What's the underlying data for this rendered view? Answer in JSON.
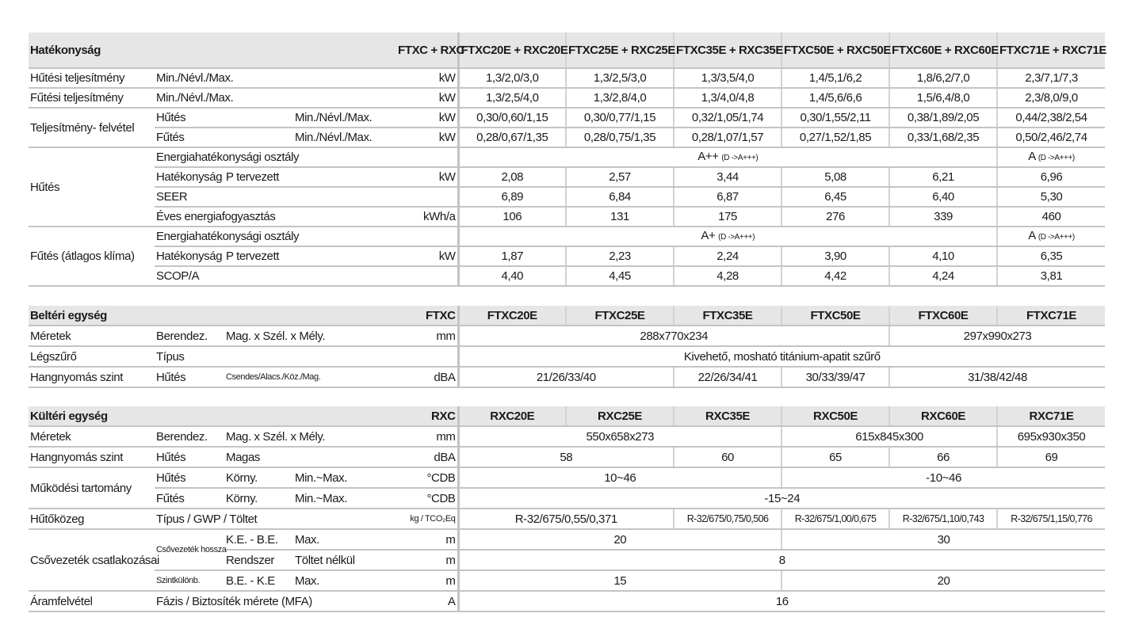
{
  "sections": [
    {
      "name": "hatekonysag",
      "rows": [
        {
          "head": true,
          "labels": [
            {
              "t": "Hatékonyság",
              "cs": 4
            }
          ],
          "unit": "FTXC + RXC",
          "values": [
            {
              "t": "FTXC20E +\nRXC20E"
            },
            {
              "t": "FTXC25E +\nRXC25E"
            },
            {
              "t": "FTXC35E +\nRXC35E"
            },
            {
              "t": "FTXC50E +\nRXC50E"
            },
            {
              "t": "FTXC60E +\nRXC60E"
            },
            {
              "t": "FTXC71E +\nRXC71E"
            }
          ]
        },
        {
          "labels": [
            {
              "t": "Hűtési teljesítmény"
            },
            {
              "t": "Min./Névl./Max.",
              "cs": 3
            }
          ],
          "unit": "kW",
          "values": [
            {
              "t": "1,3/2,0/3,0"
            },
            {
              "t": "1,3/2,5/3,0"
            },
            {
              "t": "1,3/3,5/4,0"
            },
            {
              "t": "1,4/5,1/6,2"
            },
            {
              "t": "1,8/6,2/7,0"
            },
            {
              "t": "2,3/7,1/7,3"
            }
          ]
        },
        {
          "labels": [
            {
              "t": "Fűtési teljesítmény"
            },
            {
              "t": "Min./Névl./Max.",
              "cs": 3
            }
          ],
          "unit": "kW",
          "values": [
            {
              "t": "1,3/2,5/4,0"
            },
            {
              "t": "1,3/2,8/4,0"
            },
            {
              "t": "1,3/4,0/4,8"
            },
            {
              "t": "1,4/5,6/6,6"
            },
            {
              "t": "1,5/6,4/8,0"
            },
            {
              "t": "2,3/8,0/9,0"
            }
          ]
        },
        {
          "labels": [
            {
              "t": "Teljesítmény-\nfelvétel",
              "rs": 2
            },
            {
              "t": "Hűtés",
              "cs": 2
            },
            {
              "t": "Min./Névl./Max."
            }
          ],
          "unit": "kW",
          "values": [
            {
              "t": "0,30/0,60/1,15"
            },
            {
              "t": "0,30/0,77/1,15"
            },
            {
              "t": "0,32/1,05/1,74"
            },
            {
              "t": "0,30/1,55/2,11"
            },
            {
              "t": "0,38/1,89/2,05"
            },
            {
              "t": "0,44/2,38/2,54"
            }
          ]
        },
        {
          "labels": [
            {
              "t": "Fűtés",
              "cs": 2
            },
            {
              "t": "Min./Névl./Max."
            }
          ],
          "unit": "kW",
          "values": [
            {
              "t": "0,28/0,67/1,35"
            },
            {
              "t": "0,28/0,75/1,35"
            },
            {
              "t": "0,28/1,07/1,57"
            },
            {
              "t": "0,27/1,52/1,85"
            },
            {
              "t": "0,33/1,68/2,35"
            },
            {
              "t": "0,50/2,46/2,74"
            }
          ]
        },
        {
          "labels": [
            {
              "t": "Hűtés",
              "rs": 4
            },
            {
              "t": "Energiahatékonysági osztály",
              "cs": 3
            }
          ],
          "unit": "",
          "values": [
            {
              "class": "A++",
              "range": "(D ->A+++)",
              "span": 5
            },
            {
              "class": "A",
              "range": "(D ->A+++)"
            }
          ]
        },
        {
          "labels": [
            {
              "t": "Hatékonyság"
            },
            {
              "t": "P tervezett",
              "cs": 2
            }
          ],
          "unit": "kW",
          "values": [
            {
              "t": "2,08"
            },
            {
              "t": "2,57"
            },
            {
              "t": "3,44"
            },
            {
              "t": "5,08"
            },
            {
              "t": "6,21"
            },
            {
              "t": "6,96"
            }
          ]
        },
        {
          "labels": [
            {
              "t": "SEER",
              "cs": 3
            }
          ],
          "unit": "",
          "values": [
            {
              "t": "6,89"
            },
            {
              "t": "6,84"
            },
            {
              "t": "6,87"
            },
            {
              "t": "6,45"
            },
            {
              "t": "6,40"
            },
            {
              "t": "5,30"
            }
          ]
        },
        {
          "labels": [
            {
              "t": "Éves energiafogyasztás",
              "cs": 3
            }
          ],
          "unit": "kWh/a",
          "values": [
            {
              "t": "106"
            },
            {
              "t": "131"
            },
            {
              "t": "175"
            },
            {
              "t": "276"
            },
            {
              "t": "339"
            },
            {
              "t": "460"
            }
          ]
        },
        {
          "labels": [
            {
              "t": "Fűtés\n(átlagos klíma)",
              "rs": 3
            },
            {
              "t": "Energiahatékonysági osztály",
              "cs": 3
            }
          ],
          "unit": "",
          "values": [
            {
              "class": "A+",
              "range": "(D ->A+++)",
              "span": 5
            },
            {
              "class": "A",
              "range": "(D ->A+++)"
            }
          ]
        },
        {
          "labels": [
            {
              "t": "Hatékonyság"
            },
            {
              "t": "P tervezett",
              "cs": 2
            }
          ],
          "unit": "kW",
          "values": [
            {
              "t": "1,87"
            },
            {
              "t": "2,23"
            },
            {
              "t": "2,24"
            },
            {
              "t": "3,90"
            },
            {
              "t": "4,10"
            },
            {
              "t": "6,35"
            }
          ]
        },
        {
          "labels": [
            {
              "t": "SCOP/A",
              "cs": 3
            }
          ],
          "unit": "",
          "values": [
            {
              "t": "4,40"
            },
            {
              "t": "4,45"
            },
            {
              "t": "4,28"
            },
            {
              "t": "4,42"
            },
            {
              "t": "4,24"
            },
            {
              "t": "3,81"
            }
          ]
        }
      ]
    },
    {
      "name": "belteri-egyseg",
      "rows": [
        {
          "head": true,
          "labels": [
            {
              "t": "Beltéri egység",
              "cs": 4
            }
          ],
          "unit": "FTXC",
          "values": [
            {
              "t": "FTXC20E"
            },
            {
              "t": "FTXC25E"
            },
            {
              "t": "FTXC35E"
            },
            {
              "t": "FTXC50E"
            },
            {
              "t": "FTXC60E"
            },
            {
              "t": "FTXC71E"
            }
          ]
        },
        {
          "labels": [
            {
              "t": "Méretek"
            },
            {
              "t": "Berendez."
            },
            {
              "t": "Mag. x Szél. x Mély.",
              "cs": 2
            }
          ],
          "unit": "mm",
          "values": [
            {
              "t": "288x770x234",
              "span": 4
            },
            {
              "t": "297x990x273",
              "span": 2
            }
          ]
        },
        {
          "labels": [
            {
              "t": "Légszűrő"
            },
            {
              "t": "Típus",
              "cs": 3
            }
          ],
          "unit": "",
          "values": [
            {
              "t": "Kivehető, mosható titánium-apatit szűrő",
              "span": 6
            }
          ]
        },
        {
          "labels": [
            {
              "t": "Hangnyomás szint"
            },
            {
              "t": "Hűtés"
            },
            {
              "t": "Csendes/Alacs./Köz./Mag.",
              "cs": 2,
              "small": true
            }
          ],
          "unit": "dBA",
          "values": [
            {
              "t": "21/26/33/40",
              "span": 2
            },
            {
              "t": "22/26/34/41"
            },
            {
              "t": "30/33/39/47"
            },
            {
              "t": "31/38/42/48",
              "span": 2
            }
          ]
        }
      ]
    },
    {
      "name": "kulteri-egyseg",
      "rows": [
        {
          "head": true,
          "labels": [
            {
              "t": "Kültéri egység",
              "cs": 4
            }
          ],
          "unit": "RXC",
          "values": [
            {
              "t": "RXC20E"
            },
            {
              "t": "RXC25E"
            },
            {
              "t": "RXC35E"
            },
            {
              "t": "RXC50E"
            },
            {
              "t": "RXC60E"
            },
            {
              "t": "RXC71E"
            }
          ]
        },
        {
          "labels": [
            {
              "t": "Méretek"
            },
            {
              "t": "Berendez."
            },
            {
              "t": "Mag. x Szél. x Mély.",
              "cs": 2
            }
          ],
          "unit": "mm",
          "values": [
            {
              "t": "550x658x273",
              "span": 3
            },
            {
              "t": "615x845x300",
              "span": 2
            },
            {
              "t": "695x930x350"
            }
          ]
        },
        {
          "labels": [
            {
              "t": "Hangnyomás szint"
            },
            {
              "t": "Hűtés"
            },
            {
              "t": "Magas",
              "cs": 2
            }
          ],
          "unit": "dBA",
          "values": [
            {
              "t": "58",
              "span": 2
            },
            {
              "t": "60"
            },
            {
              "t": "65"
            },
            {
              "t": "66"
            },
            {
              "t": "69"
            }
          ]
        },
        {
          "labels": [
            {
              "t": "Működési\ntartomány",
              "rs": 2
            },
            {
              "t": "Hűtés"
            },
            {
              "t": "Körny."
            },
            {
              "t": "Min.~Max."
            }
          ],
          "unit": "°CDB",
          "values": [
            {
              "t": "10~46",
              "span": 3
            },
            {
              "t": "-10~46",
              "span": 3
            }
          ]
        },
        {
          "labels": [
            {
              "t": "Fűtés"
            },
            {
              "t": "Körny."
            },
            {
              "t": "Min.~Max."
            }
          ],
          "unit": "°CDB",
          "values": [
            {
              "t": "-15~24",
              "span": 6
            }
          ]
        },
        {
          "labels": [
            {
              "t": "Hűtőközeg"
            },
            {
              "t": "Típus / GWP / Töltet",
              "cs": 3
            }
          ],
          "unit": "kg / TCO₂Eq",
          "unit_small": true,
          "values": [
            {
              "t": "R-32/675/0,55/0,371",
              "span": 2
            },
            {
              "t": "R-32/675/0,75/0,506",
              "small": true
            },
            {
              "t": "R-32/675/1,00/0,675",
              "small": true
            },
            {
              "t": "R-32/675/1,10/0,743",
              "small": true
            },
            {
              "t": "R-32/675/1,15/0,776",
              "small": true
            }
          ]
        },
        {
          "labels": [
            {
              "t": "Csővezeték\ncsatlakozásai",
              "rs": 3
            },
            {
              "t": "Csővezeték\nhossza",
              "rs": 2,
              "small": true
            },
            {
              "t": "K.E. - B.E."
            },
            {
              "t": "Max."
            }
          ],
          "unit": "m",
          "values": [
            {
              "t": "20",
              "span": 3
            },
            {
              "t": "30",
              "span": 3
            }
          ]
        },
        {
          "labels": [
            {
              "t": "Rendszer"
            },
            {
              "t": "Töltet nélkül"
            }
          ],
          "unit": "m",
          "values": [
            {
              "t": "8",
              "span": 6
            }
          ]
        },
        {
          "labels": [
            {
              "t": "Szintkülönb.",
              "small": true
            },
            {
              "t": "B.E. - K.E"
            },
            {
              "t": "Max."
            }
          ],
          "unit": "m",
          "values": [
            {
              "t": "15",
              "span": 3
            },
            {
              "t": "20",
              "span": 3
            }
          ]
        },
        {
          "labels": [
            {
              "t": "Áramfelvétel"
            },
            {
              "t": "Fázis / Biztosíték mérete (MFA)",
              "cs": 3
            }
          ],
          "unit": "A",
          "values": [
            {
              "t": "16",
              "span": 6
            }
          ]
        }
      ]
    }
  ]
}
